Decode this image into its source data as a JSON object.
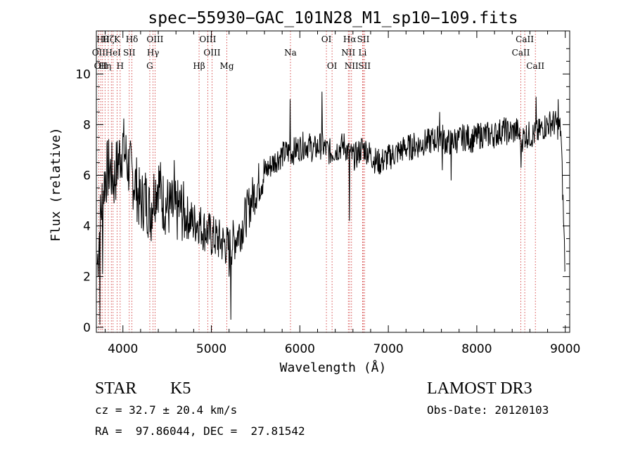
{
  "chart_data": {
    "type": "line",
    "title": "spec−55930−GAC_101N28_M1_sp10−109.fits",
    "xlabel": "Wavelength (Å)",
    "ylabel": "Flux (relative)",
    "xlim": [
      3700,
      9050
    ],
    "ylim": [
      -0.2,
      11.7
    ],
    "xticks": [
      4000,
      5000,
      6000,
      7000,
      8000,
      9000
    ],
    "xtick_labels": [
      "4000",
      "5000",
      "6000",
      "7000",
      "8000",
      "9000"
    ],
    "yticks": [
      0,
      2,
      4,
      6,
      8,
      10
    ],
    "ytick_labels": [
      "0",
      "2",
      "4",
      "6",
      "8",
      "10"
    ],
    "series": [
      {
        "name": "spectrum",
        "x": [
          3710,
          3750,
          3800,
          3850,
          3900,
          3950,
          4000,
          4050,
          4100,
          4150,
          4200,
          4250,
          4300,
          4350,
          4400,
          4450,
          4500,
          4550,
          4600,
          4650,
          4700,
          4750,
          4800,
          4850,
          4900,
          4950,
          5000,
          5050,
          5100,
          5150,
          5200,
          5250,
          5300,
          5350,
          5400,
          5450,
          5500,
          5550,
          5600,
          5650,
          5700,
          5750,
          5800,
          5850,
          5900,
          5950,
          6000,
          6050,
          6100,
          6150,
          6200,
          6250,
          6300,
          6350,
          6400,
          6450,
          6500,
          6550,
          6600,
          6650,
          6700,
          6750,
          6800,
          6850,
          6900,
          6950,
          7000,
          7050,
          7100,
          7150,
          7200,
          7250,
          7300,
          7350,
          7400,
          7450,
          7500,
          7550,
          7600,
          7650,
          7700,
          7750,
          7800,
          7850,
          7900,
          7950,
          8000,
          8050,
          8100,
          8150,
          8200,
          8250,
          8300,
          8350,
          8400,
          8450,
          8500,
          8550,
          8600,
          8650,
          8700,
          8750,
          8800,
          8850,
          8900,
          8950,
          9000
        ],
        "y": [
          2.5,
          4.5,
          6.0,
          6.3,
          5.8,
          6.6,
          7.2,
          6.5,
          6.0,
          5.6,
          4.8,
          5.2,
          4.6,
          5.3,
          5.8,
          5.0,
          4.8,
          4.6,
          4.5,
          4.7,
          4.4,
          4.3,
          4.1,
          4.2,
          3.9,
          3.8,
          3.6,
          3.5,
          3.4,
          3.3,
          3.1,
          3.4,
          3.7,
          4.0,
          4.5,
          5.0,
          5.4,
          5.8,
          6.1,
          6.3,
          6.5,
          6.7,
          6.8,
          6.9,
          6.9,
          7.0,
          7.1,
          7.2,
          7.2,
          7.0,
          7.1,
          7.2,
          7.0,
          6.9,
          7.0,
          7.1,
          7.2,
          6.9,
          6.7,
          6.8,
          7.1,
          7.0,
          6.8,
          6.6,
          6.5,
          6.6,
          6.7,
          6.8,
          6.9,
          7.0,
          7.1,
          7.1,
          7.2,
          7.2,
          7.3,
          7.3,
          7.4,
          7.4,
          7.6,
          7.3,
          7.3,
          7.4,
          7.4,
          7.5,
          7.5,
          7.4,
          7.5,
          7.6,
          7.6,
          7.6,
          7.6,
          7.7,
          7.8,
          7.7,
          7.7,
          7.8,
          7.4,
          7.6,
          7.6,
          7.6,
          7.7,
          7.9,
          8.0,
          8.1,
          8.0,
          7.8,
          2.0
        ],
        "spikes": [
          {
            "x": 3740,
            "y": 0.1
          },
          {
            "x": 3770,
            "y": 2.1
          },
          {
            "x": 4320,
            "y": 3.4
          },
          {
            "x": 4580,
            "y": 6.6
          },
          {
            "x": 5220,
            "y": 0.3
          },
          {
            "x": 5200,
            "y": 2.0
          },
          {
            "x": 5890,
            "y": 9.0
          },
          {
            "x": 6250,
            "y": 9.3
          },
          {
            "x": 6560,
            "y": 4.2
          },
          {
            "x": 7580,
            "y": 8.5
          },
          {
            "x": 7610,
            "y": 6.2
          },
          {
            "x": 7710,
            "y": 5.8
          },
          {
            "x": 8500,
            "y": 6.3
          },
          {
            "x": 8670,
            "y": 9.1
          },
          {
            "x": 8920,
            "y": 9.0
          }
        ]
      }
    ],
    "lines": [
      {
        "x": 3727,
        "labels": [
          "OII"
        ]
      },
      {
        "x": 3750,
        "labels": [
          "OIII"
        ]
      },
      {
        "x": 3770,
        "labels": [
          "Hθ"
        ]
      },
      {
        "x": 3798,
        "labels": [
          "Hη"
        ]
      },
      {
        "x": 3835,
        "labels": [
          "Hζ"
        ]
      },
      {
        "x": 3869,
        "labels": [
          "NeIII"
        ]
      },
      {
        "x": 3889,
        "labels": [
          "HeI"
        ]
      },
      {
        "x": 3934,
        "labels": [
          "K"
        ]
      },
      {
        "x": 3969,
        "labels": [
          "H"
        ]
      },
      {
        "x": 4072,
        "labels": [
          "SII"
        ]
      },
      {
        "x": 4102,
        "labels": [
          "Hδ"
        ]
      },
      {
        "x": 4304,
        "labels": [
          "G"
        ]
      },
      {
        "x": 4341,
        "labels": [
          "Hγ"
        ]
      },
      {
        "x": 4363,
        "labels": [
          "OIII"
        ]
      },
      {
        "x": 4861,
        "labels": [
          "Hβ"
        ]
      },
      {
        "x": 4959,
        "labels": [
          "OIII"
        ]
      },
      {
        "x": 5007,
        "labels": [
          "OIII"
        ]
      },
      {
        "x": 5175,
        "labels": [
          "Mg"
        ]
      },
      {
        "x": 5894,
        "labels": [
          "Na"
        ]
      },
      {
        "x": 6300,
        "labels": [
          "OI"
        ]
      },
      {
        "x": 6364,
        "labels": [
          "OI"
        ]
      },
      {
        "x": 6548,
        "labels": [
          "NII"
        ]
      },
      {
        "x": 6563,
        "labels": [
          "Hα"
        ]
      },
      {
        "x": 6584,
        "labels": [
          "NII"
        ]
      },
      {
        "x": 6708,
        "labels": [
          "Li"
        ]
      },
      {
        "x": 6717,
        "labels": [
          "SII"
        ]
      },
      {
        "x": 6731,
        "labels": [
          "SII"
        ]
      },
      {
        "x": 8498,
        "labels": [
          "CaII"
        ]
      },
      {
        "x": 8542,
        "labels": [
          "CaII"
        ]
      },
      {
        "x": 8662,
        "labels": [
          "CaII"
        ]
      }
    ],
    "line_label_texts": [
      "Hθ",
      "Hζ",
      "K",
      "Hδ",
      "OIII",
      "OIII",
      "OII",
      "HeI",
      "SII",
      "Hγ",
      "OIII",
      "OI",
      "NII",
      "Li",
      "CaII",
      "OII",
      "Hη",
      "H",
      "G",
      "Hβ",
      "Mg",
      "Na",
      "OI",
      "NII",
      "SII",
      "CaII",
      "Hα",
      "SII",
      "CaII"
    ],
    "grid": false,
    "legend": "none"
  },
  "info": {
    "object_class": "STAR",
    "subclass": "K5",
    "survey": "LAMOST DR3",
    "cz_line": "cz = 32.7 ± 20.4 km/s",
    "obs_date_line": "Obs-Date: 20120103",
    "radec_line": "RA =  97.86044, DEC =  27.81542"
  },
  "colors": {
    "line": "#000000",
    "marker": "#cc2222",
    "background": "#ffffff"
  }
}
